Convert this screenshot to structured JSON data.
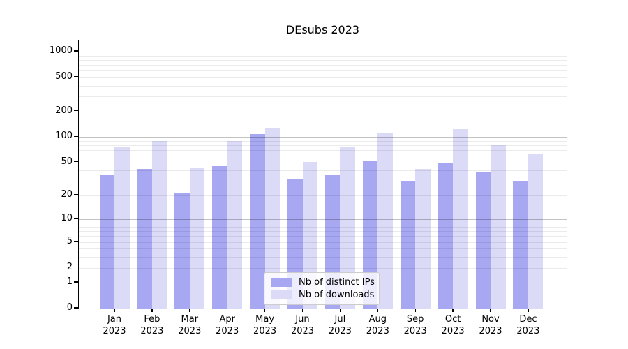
{
  "chart_data": {
    "type": "bar",
    "title": "DEsubs 2023",
    "categories": [
      "Jan",
      "Feb",
      "Mar",
      "Apr",
      "May",
      "Jun",
      "Jul",
      "Aug",
      "Sep",
      "Oct",
      "Nov",
      "Dec"
    ],
    "category_year": "2023",
    "series": [
      {
        "name": "Nb of distinct IPs",
        "color": "#a7a7f2",
        "values": [
          35,
          42,
          21,
          45,
          108,
          31,
          35,
          52,
          30,
          50,
          39,
          30
        ]
      },
      {
        "name": "Nb of downloads",
        "color": "#dbdbf8",
        "values": [
          76,
          90,
          43,
          90,
          125,
          51,
          75,
          110,
          42,
          124,
          80,
          62
        ]
      }
    ],
    "y_axis": {
      "scale": "log1p",
      "ticks": [
        0,
        1,
        2,
        5,
        10,
        20,
        50,
        100,
        200,
        500,
        1000
      ],
      "ylim": [
        0,
        1350
      ]
    },
    "gridlines": {
      "major": [
        1,
        10,
        100,
        1000
      ],
      "minor": [
        2,
        3,
        4,
        5,
        6,
        7,
        8,
        9,
        20,
        30,
        40,
        50,
        60,
        70,
        80,
        90,
        200,
        300,
        400,
        500,
        600,
        700,
        800,
        900
      ]
    },
    "legend": {
      "position": "lower center"
    },
    "colors": {
      "background": "#ffffff",
      "axis": "#000000",
      "major_grid": "rgba(0,0,0,0.24)",
      "minor_grid": "rgba(0,0,0,0.08)"
    }
  }
}
